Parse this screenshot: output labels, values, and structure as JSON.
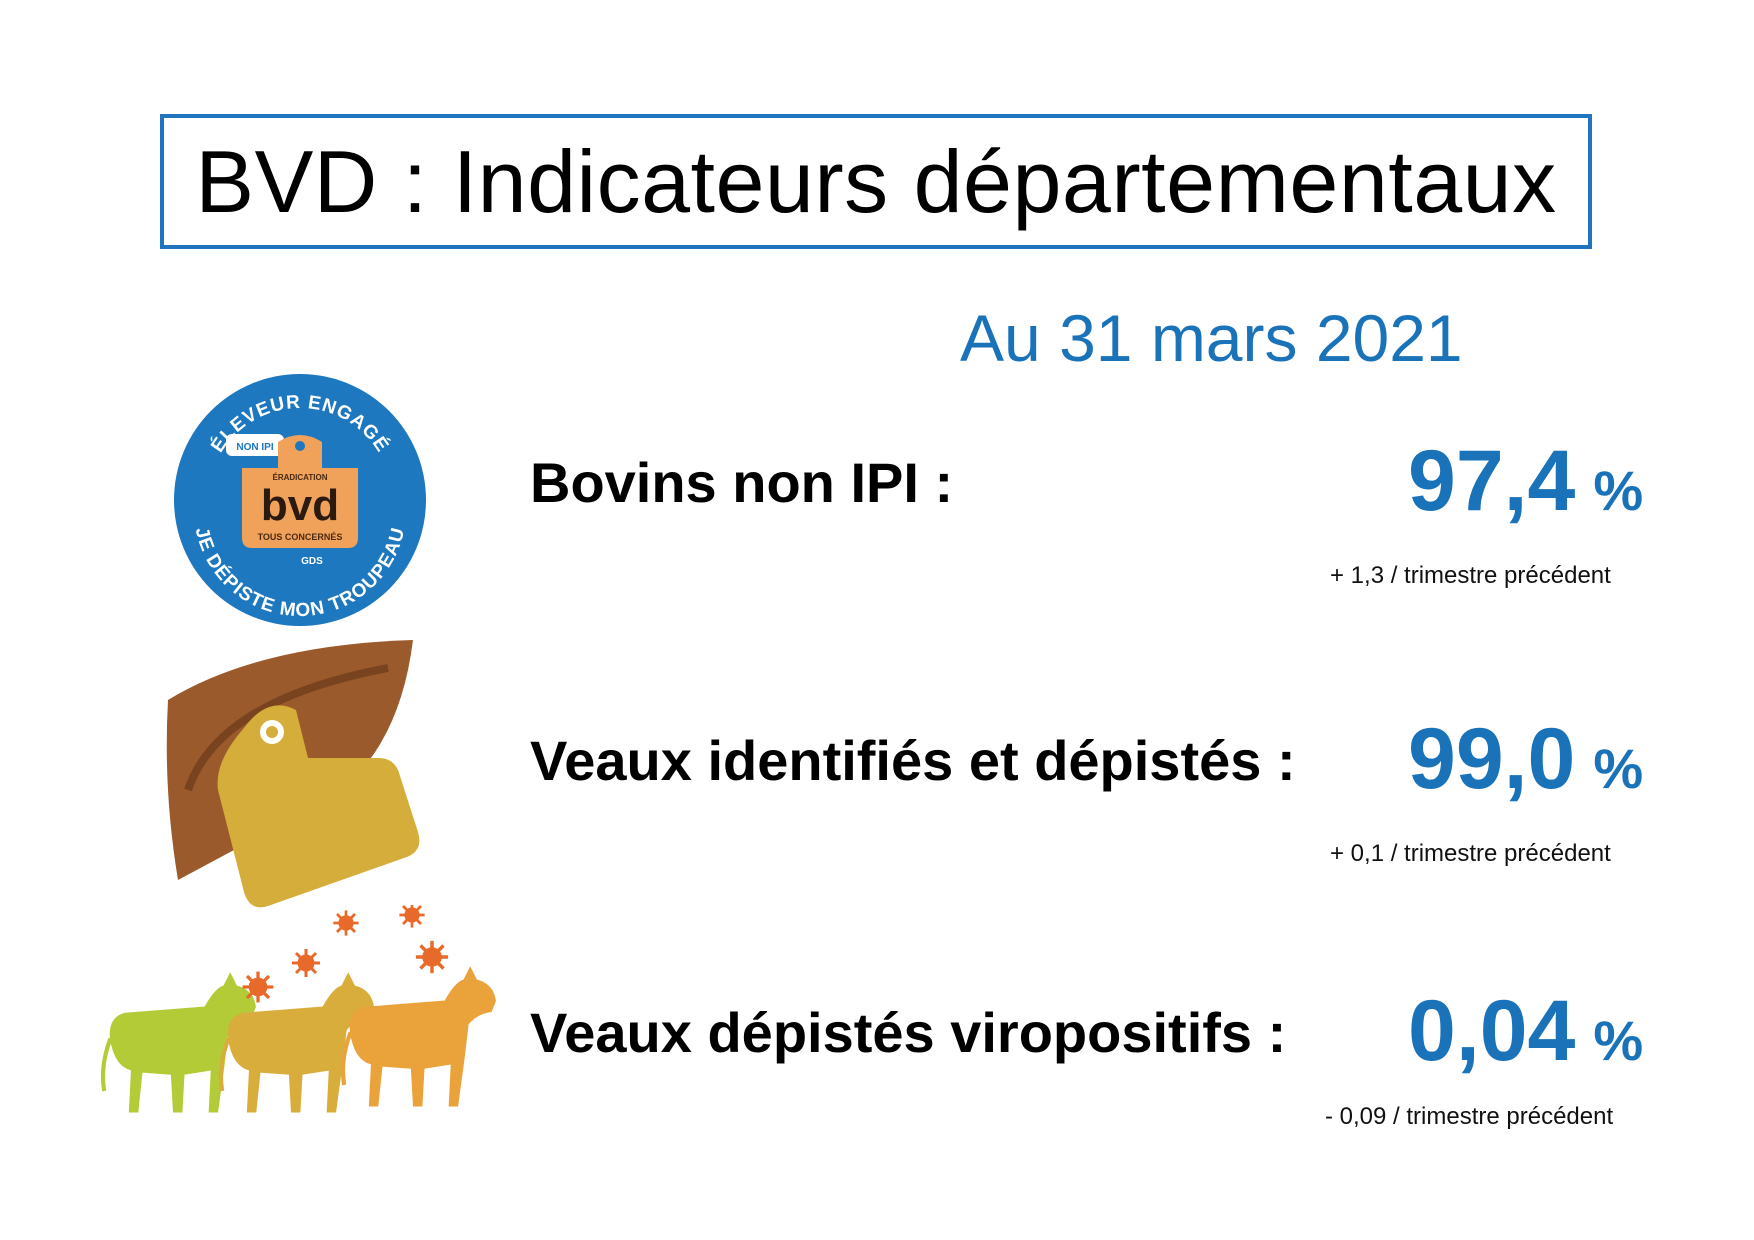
{
  "title": "BVD : Indicateurs départementaux",
  "date": "Au 31 mars 2021",
  "badge": {
    "top_text": "ÉLEVEUR ENGAGÉ",
    "bottom_text": "JE DÉPISTE MON TROUPEAU",
    "tag_small": "NON IPI",
    "tag_top": "ÉRADICATION",
    "tag_main": "bvd",
    "tag_bottom": "TOUS CONCERNÉS",
    "org": "GDS"
  },
  "indicators": [
    {
      "label": "Bovins non IPI :",
      "value": "97,4",
      "unit": "%",
      "delta": "+ 1,3 / trimestre précédent",
      "icon": "bvd-badge-icon"
    },
    {
      "label": "Veaux identifiés et dépistés :",
      "value": "99,0",
      "unit": "%",
      "delta": "+ 0,1 / trimestre précédent",
      "icon": "ear-tag-icon"
    },
    {
      "label": "Veaux dépistés viropositifs :",
      "value": "0,04",
      "unit": "%",
      "delta": "- 0,09 / trimestre précédent",
      "icon": "infected-calves-icon"
    }
  ],
  "colors": {
    "accent_blue": "#1a72b9",
    "badge_blue": "#1d78c0",
    "tag_orange": "#f0a15a",
    "ear_brown": "#9b5a2c",
    "ear_yellow": "#d5ad3a",
    "calf_green": "#b3cb37",
    "calf_orange": "#eaa23a",
    "virus_orange": "#e86a2a"
  }
}
